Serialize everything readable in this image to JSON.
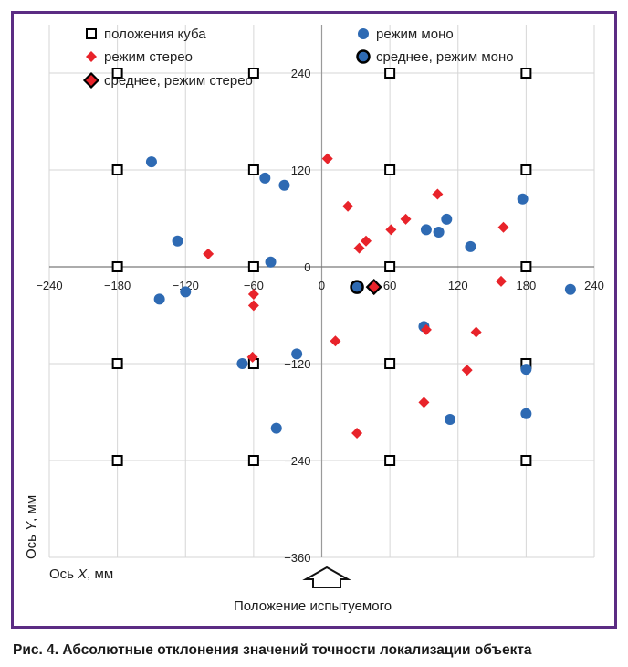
{
  "caption": "Рис. 4. Абсолютные отклонения значений точности локализации объекта",
  "subject_label": "Положение испытуемого",
  "chart_data": {
    "type": "scatter",
    "xlabel": "Ось X, мм",
    "ylabel": "Ось Y, мм",
    "xlim": [
      -240,
      240
    ],
    "ylim": [
      -360,
      300
    ],
    "x_ticks": [
      -240,
      -180,
      -120,
      -60,
      0,
      60,
      120,
      180,
      240
    ],
    "x_tick_labels": [
      "−240",
      "−180",
      "−120",
      "−60",
      "0",
      "60",
      "120",
      "180",
      "240"
    ],
    "y_ticks": [
      240,
      120,
      0,
      -120,
      -240,
      -360
    ],
    "y_tick_labels": [
      "240",
      "120",
      "0",
      "−120",
      "−240",
      "−360"
    ],
    "grid": true,
    "legend_position": "top",
    "series": [
      {
        "name": "положения куба",
        "marker": "square-open",
        "color": "#000000",
        "points": [
          [
            -180,
            240
          ],
          [
            -60,
            240
          ],
          [
            60,
            240
          ],
          [
            180,
            240
          ],
          [
            -180,
            120
          ],
          [
            -60,
            120
          ],
          [
            60,
            120
          ],
          [
            180,
            120
          ],
          [
            -180,
            0
          ],
          [
            -60,
            0
          ],
          [
            60,
            0
          ],
          [
            180,
            0
          ],
          [
            -180,
            -120
          ],
          [
            -60,
            -120
          ],
          [
            60,
            -120
          ],
          [
            180,
            -120
          ],
          [
            -180,
            -240
          ],
          [
            -60,
            -240
          ],
          [
            60,
            -240
          ],
          [
            180,
            -240
          ]
        ]
      },
      {
        "name": "режим моно",
        "marker": "circle",
        "color": "#2e6ab3",
        "points": [
          [
            -150,
            130
          ],
          [
            -127,
            32
          ],
          [
            -143,
            -40
          ],
          [
            -120,
            -31
          ],
          [
            -50,
            110
          ],
          [
            -33,
            101
          ],
          [
            -45,
            6
          ],
          [
            -70,
            -120
          ],
          [
            -22,
            -108
          ],
          [
            -40,
            -200
          ],
          [
            92,
            46
          ],
          [
            103,
            43
          ],
          [
            110,
            59
          ],
          [
            131,
            25
          ],
          [
            177,
            84
          ],
          [
            90,
            -74
          ],
          [
            113,
            -189
          ],
          [
            180,
            -127
          ],
          [
            180,
            -182
          ],
          [
            219,
            -28
          ]
        ]
      },
      {
        "name": "режим стерео",
        "marker": "diamond",
        "color": "#e8232a",
        "points": [
          [
            -100,
            16
          ],
          [
            -60,
            -34
          ],
          [
            -60,
            -48
          ],
          [
            -61,
            -112
          ],
          [
            5,
            134
          ],
          [
            12,
            -92
          ],
          [
            23,
            75
          ],
          [
            33,
            23
          ],
          [
            39,
            32
          ],
          [
            31,
            -206
          ],
          [
            61,
            46
          ],
          [
            74,
            59
          ],
          [
            102,
            90
          ],
          [
            92,
            -78
          ],
          [
            90,
            -168
          ],
          [
            128,
            -128
          ],
          [
            136,
            -81
          ],
          [
            160,
            49
          ],
          [
            158,
            -18
          ]
        ]
      },
      {
        "name": "среднее, режим моно",
        "marker": "circle-outlined",
        "color": "#2e6ab3",
        "points": [
          [
            31,
            -25
          ]
        ]
      },
      {
        "name": "среднее, режим стерео",
        "marker": "diamond-outlined",
        "color": "#e8232a",
        "points": [
          [
            46,
            -25
          ]
        ]
      }
    ]
  }
}
